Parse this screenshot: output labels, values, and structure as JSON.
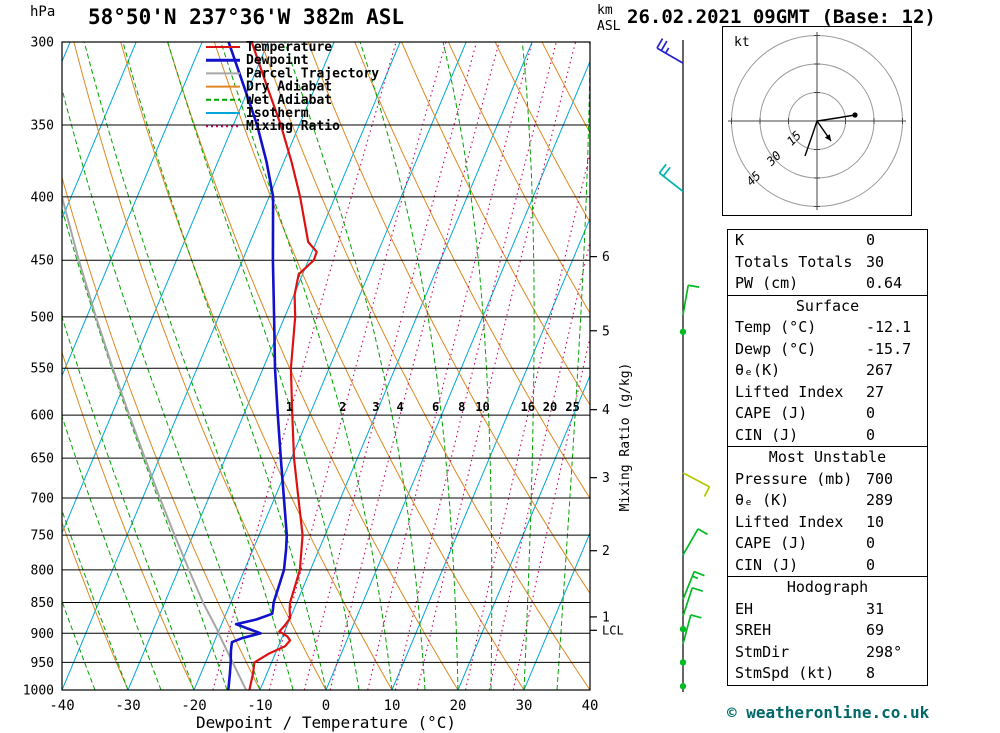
{
  "header": {
    "station": "58°50'N 237°36'W 382m ASL",
    "datetime": "26.02.2021 09GMT (Base: 12)"
  },
  "axes": {
    "pressure_label": "hPa",
    "km_label": "km",
    "asl_label": "ASL",
    "x_label": "Dewpoint / Temperature (°C)",
    "mixing_label": "Mixing Ratio (g/kg)",
    "pressure_ticks": [
      300,
      350,
      400,
      450,
      500,
      550,
      600,
      650,
      700,
      750,
      800,
      850,
      900,
      950,
      1000
    ],
    "temp_ticks": [
      -40,
      -30,
      -20,
      -10,
      0,
      10,
      20,
      30,
      40
    ],
    "km_ticks": [
      {
        "km": 1,
        "p": 873
      },
      {
        "km": 2,
        "p": 772
      },
      {
        "km": 3,
        "p": 674
      },
      {
        "km": 4,
        "p": 594
      },
      {
        "km": 5,
        "p": 513
      },
      {
        "km": 6,
        "p": 447
      }
    ],
    "lcl": {
      "label": "LCL",
      "p": 895
    }
  },
  "colors": {
    "temperature": "#dd1111",
    "dewpoint": "#1111cc",
    "parcel": "#a6a6a6",
    "dry_adiabat": "#dd8822",
    "wet_adiabat": "#00a400",
    "isotherm": "#00a8d8",
    "mixing_ratio": "#cc0066"
  },
  "legend": [
    {
      "label": "Temperature",
      "color_key": "temperature",
      "style": "solid"
    },
    {
      "label": "Dewpoint",
      "color_key": "dewpoint",
      "style": "solid"
    },
    {
      "label": "Parcel Trajectory",
      "color_key": "parcel",
      "style": "solid"
    },
    {
      "label": "Dry Adiabat",
      "color_key": "dry_adiabat",
      "style": "solid"
    },
    {
      "label": "Wet Adiabat",
      "color_key": "wet_adiabat",
      "style": "dashed"
    },
    {
      "label": "Isotherm",
      "color_key": "isotherm",
      "style": "solid"
    },
    {
      "label": "Mixing Ratio",
      "color_key": "mixing_ratio",
      "style": "dotted"
    }
  ],
  "chart_data": {
    "type": "line",
    "variant": "skew-t log-p sounding",
    "x_range": [
      -40,
      40
    ],
    "p_range": [
      300,
      1000
    ],
    "grid": true,
    "isotherm_step_c": 10,
    "dry_adiabat_step_c": 10,
    "wet_adiabat_step_c": 5,
    "mixing_ratio_lines": [
      1,
      2,
      3,
      4,
      6,
      8,
      10,
      16,
      20,
      25
    ],
    "series": {
      "temperature": [
        [
          1000,
          -11.6
        ],
        [
          970,
          -12.1
        ],
        [
          950,
          -12.6
        ],
        [
          935,
          -11.0
        ],
        [
          922,
          -9.0
        ],
        [
          912,
          -8.6
        ],
        [
          905,
          -9.3
        ],
        [
          897,
          -10.8
        ],
        [
          888,
          -10.4
        ],
        [
          875,
          -10.0
        ],
        [
          862,
          -10.6
        ],
        [
          850,
          -11.0
        ],
        [
          800,
          -11.6
        ],
        [
          750,
          -13.4
        ],
        [
          700,
          -16.4
        ],
        [
          650,
          -19.6
        ],
        [
          600,
          -22.6
        ],
        [
          550,
          -25.8
        ],
        [
          500,
          -28.4
        ],
        [
          480,
          -29.9
        ],
        [
          462,
          -30.6
        ],
        [
          450,
          -29.2
        ],
        [
          443,
          -29.3
        ],
        [
          435,
          -31.2
        ],
        [
          400,
          -35.3
        ],
        [
          375,
          -38.8
        ],
        [
          350,
          -42.8
        ],
        [
          325,
          -47.5
        ],
        [
          300,
          -52.5
        ]
      ],
      "dewpoint": [
        [
          1000,
          -14.8
        ],
        [
          970,
          -15.6
        ],
        [
          950,
          -16.2
        ],
        [
          930,
          -16.9
        ],
        [
          915,
          -17.3
        ],
        [
          908,
          -16.0
        ],
        [
          900,
          -13.5
        ],
        [
          893,
          -15.5
        ],
        [
          885,
          -17.8
        ],
        [
          877,
          -15.0
        ],
        [
          868,
          -13.0
        ],
        [
          860,
          -13.2
        ],
        [
          850,
          -13.5
        ],
        [
          820,
          -13.8
        ],
        [
          800,
          -14.0
        ],
        [
          770,
          -15.0
        ],
        [
          750,
          -15.8
        ],
        [
          700,
          -18.6
        ],
        [
          650,
          -21.6
        ],
        [
          600,
          -24.8
        ],
        [
          550,
          -28.2
        ],
        [
          500,
          -31.6
        ],
        [
          450,
          -35.4
        ],
        [
          400,
          -39.4
        ],
        [
          375,
          -42.6
        ],
        [
          350,
          -46.4
        ],
        [
          325,
          -51.0
        ],
        [
          300,
          -56.0
        ]
      ],
      "parcel": [
        [
          1000,
          -12.1
        ],
        [
          950,
          -15.9
        ],
        [
          900,
          -19.9
        ],
        [
          893,
          -20.4
        ],
        [
          850,
          -24.2
        ],
        [
          800,
          -28.4
        ],
        [
          750,
          -32.8
        ],
        [
          700,
          -37.4
        ],
        [
          650,
          -42.2
        ],
        [
          600,
          -47.3
        ],
        [
          550,
          -52.8
        ],
        [
          500,
          -58.6
        ],
        [
          450,
          -64.8
        ],
        [
          400,
          -71.4
        ],
        [
          380,
          -74.2
        ]
      ]
    }
  },
  "wind_barbs": [
    {
      "p": 312,
      "dir": 300,
      "spd": 25,
      "color": "#2424cc"
    },
    {
      "p": 396,
      "dir": 308,
      "spd": 20,
      "color": "#00b2b2"
    },
    {
      "p": 498,
      "dir": 10,
      "spd": 10,
      "color": "#00bb22"
    },
    {
      "p": 514,
      "dir": 0,
      "spd": 0,
      "color": "#00bb22"
    },
    {
      "p": 668,
      "dir": 118,
      "spd": 10,
      "color": "#b4c800"
    },
    {
      "p": 778,
      "dir": 30,
      "spd": 10,
      "color": "#00bb22"
    },
    {
      "p": 845,
      "dir": 22,
      "spd": 15,
      "color": "#00bb22"
    },
    {
      "p": 872,
      "dir": 18,
      "spd": 10,
      "color": "#00bb22"
    },
    {
      "p": 893,
      "dir": 0,
      "spd": 0,
      "color": "#00bb22"
    },
    {
      "p": 918,
      "dir": 15,
      "spd": 10,
      "color": "#00bb22"
    },
    {
      "p": 950,
      "dir": 0,
      "spd": 0,
      "color": "#00bb22"
    },
    {
      "p": 993,
      "dir": 0,
      "spd": 0,
      "color": "#00bb22"
    }
  ],
  "hodograph": {
    "unit": "kt",
    "rings": [
      15,
      30,
      45
    ],
    "trace": [
      [
        -12,
        35
      ],
      [
        -4,
        12
      ],
      [
        0,
        0
      ],
      [
        20,
        -3
      ],
      [
        38,
        -6
      ]
    ],
    "storm_motion": [
      14,
      20
    ]
  },
  "table": {
    "indices": [
      {
        "label": "K",
        "value": "0"
      },
      {
        "label": "Totals Totals",
        "value": "30"
      },
      {
        "label": "PW (cm)",
        "value": "0.64"
      }
    ],
    "sections": [
      {
        "title": "Surface",
        "rows": [
          [
            "Temp (°C)",
            "-12.1"
          ],
          [
            "Dewp (°C)",
            "-15.7"
          ],
          [
            "θₑ(K)",
            "267"
          ],
          [
            "Lifted Index",
            "27"
          ],
          [
            "CAPE (J)",
            "0"
          ],
          [
            "CIN (J)",
            "0"
          ]
        ]
      },
      {
        "title": "Most Unstable",
        "rows": [
          [
            "Pressure (mb)",
            "700"
          ],
          [
            "θₑ (K)",
            "289"
          ],
          [
            "Lifted Index",
            "10"
          ],
          [
            "CAPE (J)",
            "0"
          ],
          [
            "CIN (J)",
            "0"
          ]
        ]
      },
      {
        "title": "Hodograph",
        "rows": [
          [
            "EH",
            "31"
          ],
          [
            "SREH",
            "69"
          ],
          [
            "StmDir",
            "298°"
          ],
          [
            "StmSpd (kt)",
            "8"
          ]
        ]
      }
    ]
  },
  "footer": {
    "credit": "© weatheronline.co.uk"
  }
}
